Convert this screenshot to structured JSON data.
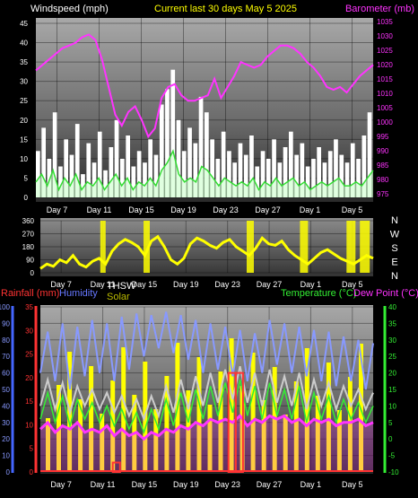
{
  "colors": {
    "background": "#000000",
    "wind": "#ffffff",
    "wind_avg": "#33dd33",
    "barometer": "#ff33ff",
    "direction": "#ffff00",
    "rain": "#ff3333",
    "humidity": "#8899ff",
    "thsw": "#ffffff",
    "solar": "#ffff00",
    "temperature": "#33ee33",
    "dew_point": "#ff33ff"
  },
  "chart_data": [
    {
      "type": "line",
      "title": "Current last 30 days May 5 2025",
      "left_axis_label": "Windspeed (mph)",
      "right_axis_label": "Barometer (mb)",
      "x_ticks": [
        "Day 7",
        "Day 11",
        "Day 15",
        "Day 19",
        "Day 23",
        "Day 27",
        "Day 1",
        "Day 5"
      ],
      "left_ticks": [
        "45",
        "40",
        "35",
        "30",
        "25",
        "20",
        "15",
        "10",
        "5",
        "0"
      ],
      "left_range": [
        0,
        45
      ],
      "right_ticks": [
        "1035",
        "1030",
        "1025",
        "1020",
        "1015",
        "1010",
        "1005",
        "1000",
        "995",
        "990",
        "985",
        "980",
        "975"
      ],
      "right_range": [
        972,
        1037
      ],
      "series": [
        {
          "name": "Windspeed (mph)",
          "values": [
            12,
            18,
            10,
            22,
            8,
            15,
            11,
            19,
            6,
            14,
            9,
            17,
            7,
            13,
            20,
            10,
            16,
            8,
            12,
            9,
            15,
            11,
            24,
            28,
            33,
            20,
            12,
            18,
            14,
            26,
            22,
            15,
            10,
            17,
            12,
            9,
            14,
            11,
            16,
            8,
            12,
            10,
            15,
            9,
            13,
            17,
            11,
            14,
            8,
            10,
            13,
            9,
            12,
            15,
            11,
            9,
            14,
            10,
            16,
            22
          ]
        },
        {
          "name": "Average wind",
          "values": [
            4,
            6,
            3,
            7,
            2,
            5,
            3,
            6,
            2,
            4,
            3,
            5,
            2,
            4,
            6,
            3,
            5,
            2,
            4,
            3,
            5,
            3,
            7,
            9,
            12,
            6,
            4,
            5,
            4,
            8,
            7,
            5,
            3,
            5,
            4,
            3,
            4,
            3,
            5,
            2,
            4,
            3,
            5,
            3,
            4,
            5,
            3,
            4,
            2,
            3,
            4,
            3,
            4,
            5,
            3,
            3,
            4,
            3,
            5,
            7
          ]
        },
        {
          "name": "Barometer (mb)",
          "values": [
            1018,
            1020,
            1022,
            1024,
            1026,
            1027,
            1028,
            1030,
            1031,
            1029,
            1022,
            1012,
            1002,
            998,
            1003,
            1005,
            1000,
            994,
            997,
            1008,
            1012,
            1013,
            1009,
            1007,
            1007,
            1008,
            1009,
            1015,
            1008,
            1012,
            1016,
            1021,
            1020,
            1019,
            1020,
            1023,
            1025,
            1027,
            1027,
            1026,
            1024,
            1021,
            1019,
            1016,
            1012,
            1011,
            1012,
            1010,
            1013,
            1016,
            1018,
            1020
          ]
        }
      ]
    },
    {
      "type": "line",
      "y_ticks": [
        "360",
        "270",
        "180",
        "90",
        "0"
      ],
      "y_range": [
        0,
        360
      ],
      "compass_labels": [
        "N",
        "W",
        "S",
        "E",
        "N"
      ],
      "x_ticks": [
        "Day 7",
        "Day 11",
        "Day 15",
        "Day 19",
        "Day 23",
        "Day 27",
        "Day 1",
        "Day 5"
      ],
      "series": [
        {
          "name": "Wind direction",
          "values": [
            30,
            60,
            45,
            90,
            70,
            120,
            60,
            40,
            80,
            100,
            60,
            150,
            200,
            230,
            210,
            180,
            120,
            220,
            250,
            180,
            90,
            60,
            100,
            200,
            240,
            220,
            190,
            170,
            210,
            230,
            180,
            150,
            120,
            170,
            240,
            200,
            190,
            220,
            160,
            120,
            90,
            60,
            100,
            140,
            160,
            130,
            100,
            80,
            60,
            90,
            120,
            100
          ]
        }
      ]
    },
    {
      "type": "line",
      "labels": {
        "rainfall": "Rainfall (mm)",
        "humidity": "Humidity",
        "thsw": "THSW",
        "solar": "Solar",
        "temperature": "Temperature (°C)",
        "dew_point": "Dew Point (°C)"
      },
      "humidity_ticks": [
        "100",
        "90",
        "80",
        "70",
        "60",
        "50",
        "40",
        "30",
        "20",
        "10",
        "0"
      ],
      "rain_ticks": [
        "35",
        "30",
        "25",
        "20",
        "15",
        "10",
        "5",
        "0"
      ],
      "temp_ticks": [
        "40",
        "35",
        "30",
        "25",
        "20",
        "15",
        "10",
        "5",
        "0",
        "-5",
        "-10"
      ],
      "x_ticks": [
        "Day 7",
        "Day 11",
        "Day 15",
        "Day 19",
        "Day 23",
        "Day 27",
        "Day 1",
        "Day 5"
      ],
      "series": [
        {
          "name": "Humidity",
          "values": [
            60,
            85,
            55,
            90,
            50,
            88,
            58,
            92,
            60,
            90,
            55,
            94,
            62,
            96,
            70,
            95,
            75,
            97,
            72,
            95,
            68,
            92,
            60,
            90,
            62,
            88,
            58,
            86,
            55,
            84,
            60,
            92,
            65,
            90,
            60,
            88,
            58,
            86,
            55,
            85,
            52,
            82,
            55,
            80,
            50,
            78
          ]
        },
        {
          "name": "Temperature (°C)",
          "values": [
            6,
            14,
            5,
            13,
            4,
            12,
            6,
            11,
            5,
            10,
            4,
            9,
            3,
            8,
            2,
            9,
            3,
            12,
            4,
            14,
            5,
            15,
            6,
            16,
            7,
            17,
            8,
            18,
            7,
            16,
            6,
            17,
            7,
            15,
            6,
            16,
            5,
            14,
            6,
            13,
            5,
            12,
            6,
            11,
            5,
            10
          ]
        },
        {
          "name": "Dew Point (°C)",
          "values": [
            3,
            5,
            2,
            4,
            3,
            5,
            2,
            3,
            2,
            4,
            1,
            3,
            1,
            2,
            0,
            2,
            1,
            3,
            2,
            4,
            3,
            5,
            4,
            6,
            5,
            6,
            5,
            7,
            4,
            6,
            5,
            7,
            6,
            7,
            5,
            6,
            4,
            6,
            5,
            6,
            4,
            5,
            5,
            6,
            4,
            5
          ]
        },
        {
          "name": "Rainfall (mm)",
          "values": [
            0,
            0,
            0,
            0,
            0,
            0,
            0,
            0,
            0,
            0,
            2,
            0,
            0,
            0,
            0,
            0,
            0,
            0,
            0,
            0,
            0,
            0,
            0,
            0,
            0,
            0,
            21,
            21,
            0,
            0,
            0,
            0,
            0,
            0,
            0,
            0,
            0,
            0,
            0,
            0,
            0,
            0,
            0,
            0,
            0,
            0
          ]
        }
      ]
    }
  ]
}
